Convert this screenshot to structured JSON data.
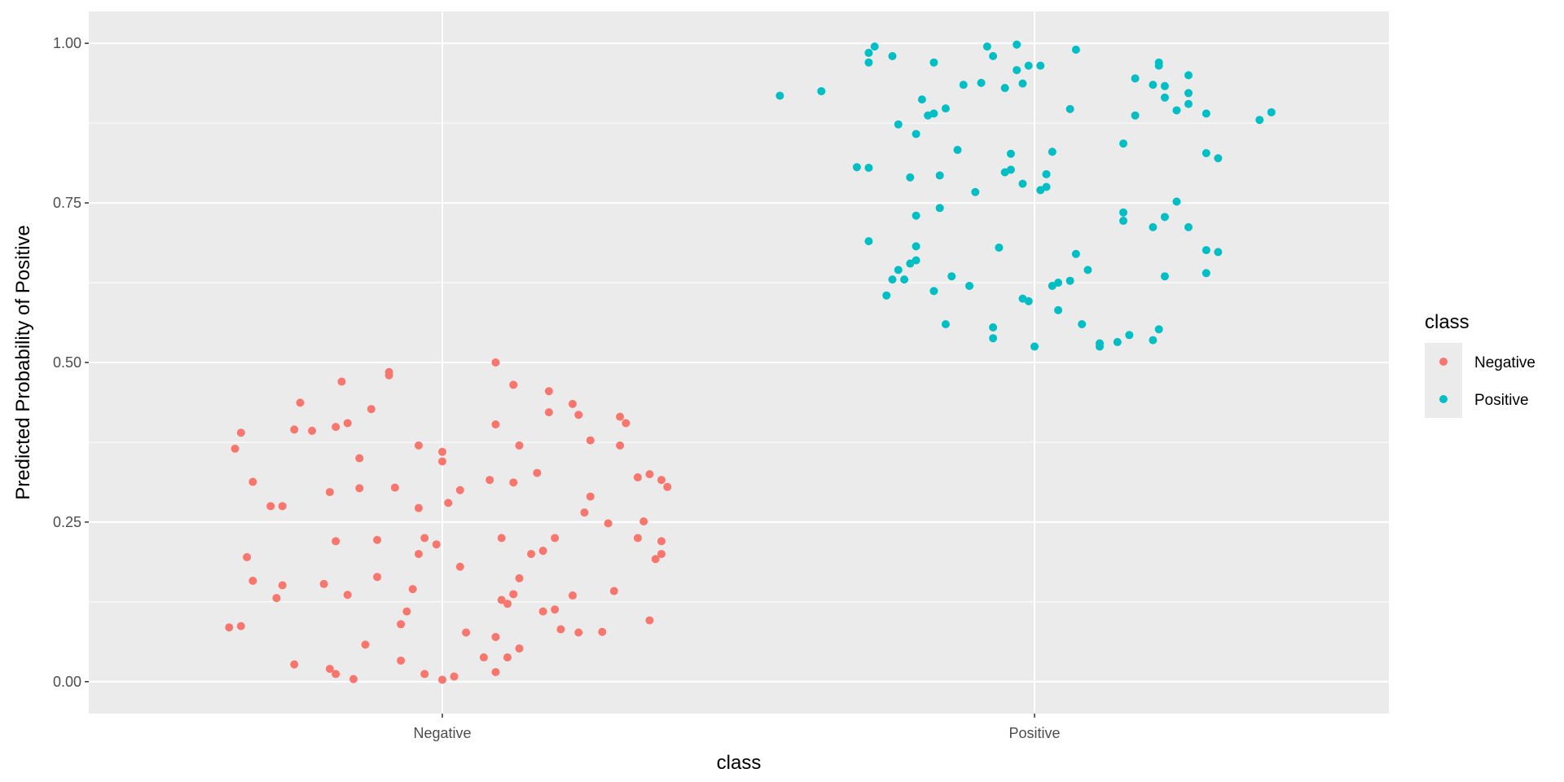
{
  "chart_data": {
    "type": "scatter",
    "title": "",
    "xlabel": "class",
    "ylabel": "Predicted Probability of Positive",
    "categories": [
      "Negative",
      "Positive"
    ],
    "ylim": [
      -0.05,
      1.05
    ],
    "yticks": [
      "0.00",
      "0.25",
      "0.50",
      "0.75",
      "1.00"
    ],
    "grid": true,
    "jitter": true,
    "legend": {
      "title": "class",
      "position": "right",
      "entries": [
        "Negative",
        "Positive"
      ]
    },
    "colors": {
      "Negative": "#F8766D",
      "Positive": "#00BFC4",
      "panel": "#EBEBEB",
      "grid": "#FFFFFF"
    },
    "series": [
      {
        "name": "Negative",
        "points": [
          [
            -0.36,
            0.085
          ],
          [
            -0.34,
            0.087
          ],
          [
            -0.33,
            0.195
          ],
          [
            -0.32,
            0.158
          ],
          [
            -0.35,
            0.365
          ],
          [
            -0.34,
            0.39
          ],
          [
            -0.32,
            0.313
          ],
          [
            -0.29,
            0.275
          ],
          [
            -0.28,
            0.131
          ],
          [
            -0.27,
            0.151
          ],
          [
            -0.27,
            0.275
          ],
          [
            -0.25,
            0.027
          ],
          [
            -0.25,
            0.395
          ],
          [
            -0.24,
            0.437
          ],
          [
            -0.22,
            0.393
          ],
          [
            -0.2,
            0.153
          ],
          [
            -0.19,
            0.02
          ],
          [
            -0.18,
            0.012
          ],
          [
            -0.19,
            0.297
          ],
          [
            -0.18,
            0.22
          ],
          [
            -0.18,
            0.399
          ],
          [
            -0.17,
            0.47
          ],
          [
            -0.16,
            0.136
          ],
          [
            -0.16,
            0.405
          ],
          [
            -0.15,
            0.004
          ],
          [
            -0.14,
            0.303
          ],
          [
            -0.14,
            0.35
          ],
          [
            -0.13,
            0.058
          ],
          [
            -0.12,
            0.427
          ],
          [
            -0.11,
            0.222
          ],
          [
            -0.11,
            0.164
          ],
          [
            -0.09,
            0.48
          ],
          [
            -0.09,
            0.485
          ],
          [
            -0.08,
            0.304
          ],
          [
            -0.07,
            0.033
          ],
          [
            -0.07,
            0.09
          ],
          [
            -0.06,
            0.11
          ],
          [
            -0.05,
            0.145
          ],
          [
            -0.04,
            0.2
          ],
          [
            -0.04,
            0.272
          ],
          [
            -0.04,
            0.37
          ],
          [
            -0.03,
            0.012
          ],
          [
            -0.03,
            0.225
          ],
          [
            -0.01,
            0.215
          ],
          [
            0.0,
            0.003
          ],
          [
            0.0,
            0.345
          ],
          [
            0.0,
            0.36
          ],
          [
            0.01,
            0.28
          ],
          [
            0.02,
            0.008
          ],
          [
            0.03,
            0.18
          ],
          [
            0.03,
            0.3
          ],
          [
            0.04,
            0.077
          ],
          [
            0.07,
            0.038
          ],
          [
            0.08,
            0.316
          ],
          [
            0.09,
            0.015
          ],
          [
            0.09,
            0.07
          ],
          [
            0.09,
            0.403
          ],
          [
            0.09,
            0.5
          ],
          [
            0.1,
            0.225
          ],
          [
            0.1,
            0.128
          ],
          [
            0.11,
            0.122
          ],
          [
            0.11,
            0.038
          ],
          [
            0.12,
            0.137
          ],
          [
            0.12,
            0.465
          ],
          [
            0.12,
            0.312
          ],
          [
            0.13,
            0.052
          ],
          [
            0.13,
            0.162
          ],
          [
            0.13,
            0.37
          ],
          [
            0.15,
            0.2
          ],
          [
            0.16,
            0.327
          ],
          [
            0.17,
            0.11
          ],
          [
            0.17,
            0.205
          ],
          [
            0.18,
            0.455
          ],
          [
            0.18,
            0.422
          ],
          [
            0.19,
            0.113
          ],
          [
            0.19,
            0.225
          ],
          [
            0.2,
            0.082
          ],
          [
            0.22,
            0.135
          ],
          [
            0.22,
            0.435
          ],
          [
            0.23,
            0.418
          ],
          [
            0.23,
            0.077
          ],
          [
            0.24,
            0.265
          ],
          [
            0.25,
            0.378
          ],
          [
            0.25,
            0.29
          ],
          [
            0.27,
            0.078
          ],
          [
            0.28,
            0.248
          ],
          [
            0.29,
            0.142
          ],
          [
            0.3,
            0.37
          ],
          [
            0.3,
            0.415
          ],
          [
            0.31,
            0.405
          ],
          [
            0.33,
            0.225
          ],
          [
            0.33,
            0.32
          ],
          [
            0.34,
            0.251
          ],
          [
            0.35,
            0.096
          ],
          [
            0.35,
            0.325
          ],
          [
            0.36,
            0.192
          ],
          [
            0.37,
            0.316
          ],
          [
            0.37,
            0.2
          ],
          [
            0.37,
            0.22
          ],
          [
            0.38,
            0.305
          ]
        ]
      },
      {
        "name": "Positive",
        "points": [
          [
            -0.43,
            0.918
          ],
          [
            -0.36,
            0.925
          ],
          [
            -0.3,
            0.806
          ],
          [
            -0.28,
            0.805
          ],
          [
            -0.28,
            0.985
          ],
          [
            -0.28,
            0.97
          ],
          [
            -0.28,
            0.69
          ],
          [
            -0.27,
            0.995
          ],
          [
            -0.25,
            0.605
          ],
          [
            -0.24,
            0.63
          ],
          [
            -0.24,
            0.98
          ],
          [
            -0.23,
            0.873
          ],
          [
            -0.23,
            0.645
          ],
          [
            -0.22,
            0.63
          ],
          [
            -0.21,
            0.655
          ],
          [
            -0.21,
            0.79
          ],
          [
            -0.2,
            0.858
          ],
          [
            -0.2,
            0.73
          ],
          [
            -0.2,
            0.66
          ],
          [
            -0.2,
            0.682
          ],
          [
            -0.19,
            0.912
          ],
          [
            -0.18,
            0.887
          ],
          [
            -0.17,
            0.612
          ],
          [
            -0.17,
            0.89
          ],
          [
            -0.17,
            0.97
          ],
          [
            -0.16,
            0.742
          ],
          [
            -0.16,
            0.793
          ],
          [
            -0.15,
            0.898
          ],
          [
            -0.15,
            0.56
          ],
          [
            -0.14,
            0.635
          ],
          [
            -0.13,
            0.833
          ],
          [
            -0.12,
            0.935
          ],
          [
            -0.11,
            0.62
          ],
          [
            -0.1,
            0.767
          ],
          [
            -0.09,
            0.938
          ],
          [
            -0.08,
            0.995
          ],
          [
            -0.07,
            0.98
          ],
          [
            -0.07,
            0.555
          ],
          [
            -0.07,
            0.538
          ],
          [
            -0.06,
            0.68
          ],
          [
            -0.05,
            0.798
          ],
          [
            -0.05,
            0.93
          ],
          [
            -0.04,
            0.802
          ],
          [
            -0.04,
            0.827
          ],
          [
            -0.03,
            0.958
          ],
          [
            -0.03,
            0.998
          ],
          [
            -0.02,
            0.937
          ],
          [
            -0.02,
            0.6
          ],
          [
            -0.02,
            0.78
          ],
          [
            -0.01,
            0.965
          ],
          [
            -0.01,
            0.596
          ],
          [
            0.0,
            0.525
          ],
          [
            0.01,
            0.77
          ],
          [
            0.01,
            0.965
          ],
          [
            0.02,
            0.775
          ],
          [
            0.02,
            0.795
          ],
          [
            0.03,
            0.62
          ],
          [
            0.03,
            0.83
          ],
          [
            0.04,
            0.625
          ],
          [
            0.04,
            0.582
          ],
          [
            0.06,
            0.628
          ],
          [
            0.06,
            0.897
          ],
          [
            0.07,
            0.99
          ],
          [
            0.07,
            0.67
          ],
          [
            0.08,
            0.56
          ],
          [
            0.09,
            0.645
          ],
          [
            0.11,
            0.525
          ],
          [
            0.11,
            0.53
          ],
          [
            0.14,
            0.532
          ],
          [
            0.15,
            0.735
          ],
          [
            0.15,
            0.722
          ],
          [
            0.15,
            0.843
          ],
          [
            0.16,
            0.543
          ],
          [
            0.17,
            0.887
          ],
          [
            0.17,
            0.945
          ],
          [
            0.2,
            0.935
          ],
          [
            0.2,
            0.712
          ],
          [
            0.2,
            0.535
          ],
          [
            0.21,
            0.552
          ],
          [
            0.21,
            0.965
          ],
          [
            0.21,
            0.97
          ],
          [
            0.22,
            0.635
          ],
          [
            0.22,
            0.915
          ],
          [
            0.22,
            0.728
          ],
          [
            0.22,
            0.933
          ],
          [
            0.24,
            0.895
          ],
          [
            0.24,
            0.752
          ],
          [
            0.26,
            0.922
          ],
          [
            0.26,
            0.905
          ],
          [
            0.26,
            0.95
          ],
          [
            0.26,
            0.712
          ],
          [
            0.29,
            0.89
          ],
          [
            0.29,
            0.676
          ],
          [
            0.29,
            0.64
          ],
          [
            0.29,
            0.828
          ],
          [
            0.31,
            0.82
          ],
          [
            0.31,
            0.673
          ],
          [
            0.38,
            0.88
          ],
          [
            0.4,
            0.892
          ]
        ]
      }
    ]
  }
}
